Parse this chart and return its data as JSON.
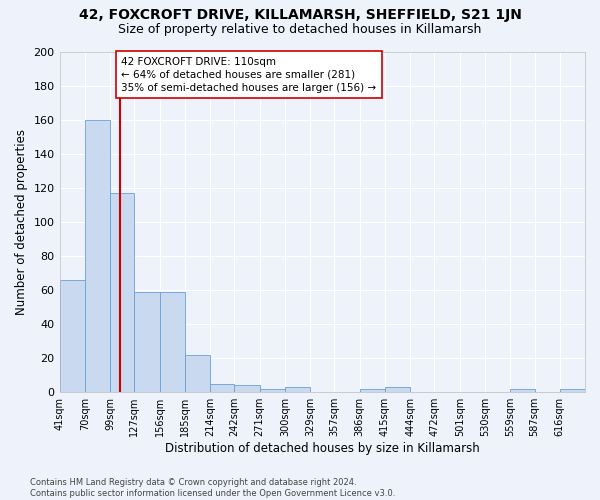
{
  "title": "42, FOXCROFT DRIVE, KILLAMARSH, SHEFFIELD, S21 1JN",
  "subtitle": "Size of property relative to detached houses in Killamarsh",
  "xlabel": "Distribution of detached houses by size in Killamarsh",
  "ylabel": "Number of detached properties",
  "bins": [
    41,
    70,
    99,
    127,
    156,
    185,
    214,
    242,
    271,
    300,
    329,
    357,
    386,
    415,
    444,
    472,
    501,
    530,
    559,
    587,
    616
  ],
  "bin_labels": [
    "41sqm",
    "70sqm",
    "99sqm",
    "127sqm",
    "156sqm",
    "185sqm",
    "214sqm",
    "242sqm",
    "271sqm",
    "300sqm",
    "329sqm",
    "357sqm",
    "386sqm",
    "415sqm",
    "444sqm",
    "472sqm",
    "501sqm",
    "530sqm",
    "559sqm",
    "587sqm",
    "616sqm"
  ],
  "counts": [
    66,
    160,
    117,
    59,
    59,
    22,
    5,
    4,
    2,
    3,
    0,
    0,
    2,
    3,
    0,
    0,
    0,
    0,
    2,
    0,
    2
  ],
  "bar_color": "#c8d9f0",
  "bar_edge_color": "#6a9fd8",
  "red_line_x": 110,
  "red_line_color": "#cc0000",
  "annotation_text": "42 FOXCROFT DRIVE: 110sqm\n← 64% of detached houses are smaller (281)\n35% of semi-detached houses are larger (156) →",
  "annotation_box_color": "#ffffff",
  "annotation_box_edge_color": "#cc0000",
  "ylim": [
    0,
    200
  ],
  "yticks": [
    0,
    20,
    40,
    60,
    80,
    100,
    120,
    140,
    160,
    180,
    200
  ],
  "footer": "Contains HM Land Registry data © Crown copyright and database right 2024.\nContains public sector information licensed under the Open Government Licence v3.0.",
  "bg_color": "#eef2fa",
  "grid_color": "#ffffff",
  "title_fontsize": 10,
  "subtitle_fontsize": 9,
  "xlabel_fontsize": 8.5,
  "ylabel_fontsize": 8.5
}
